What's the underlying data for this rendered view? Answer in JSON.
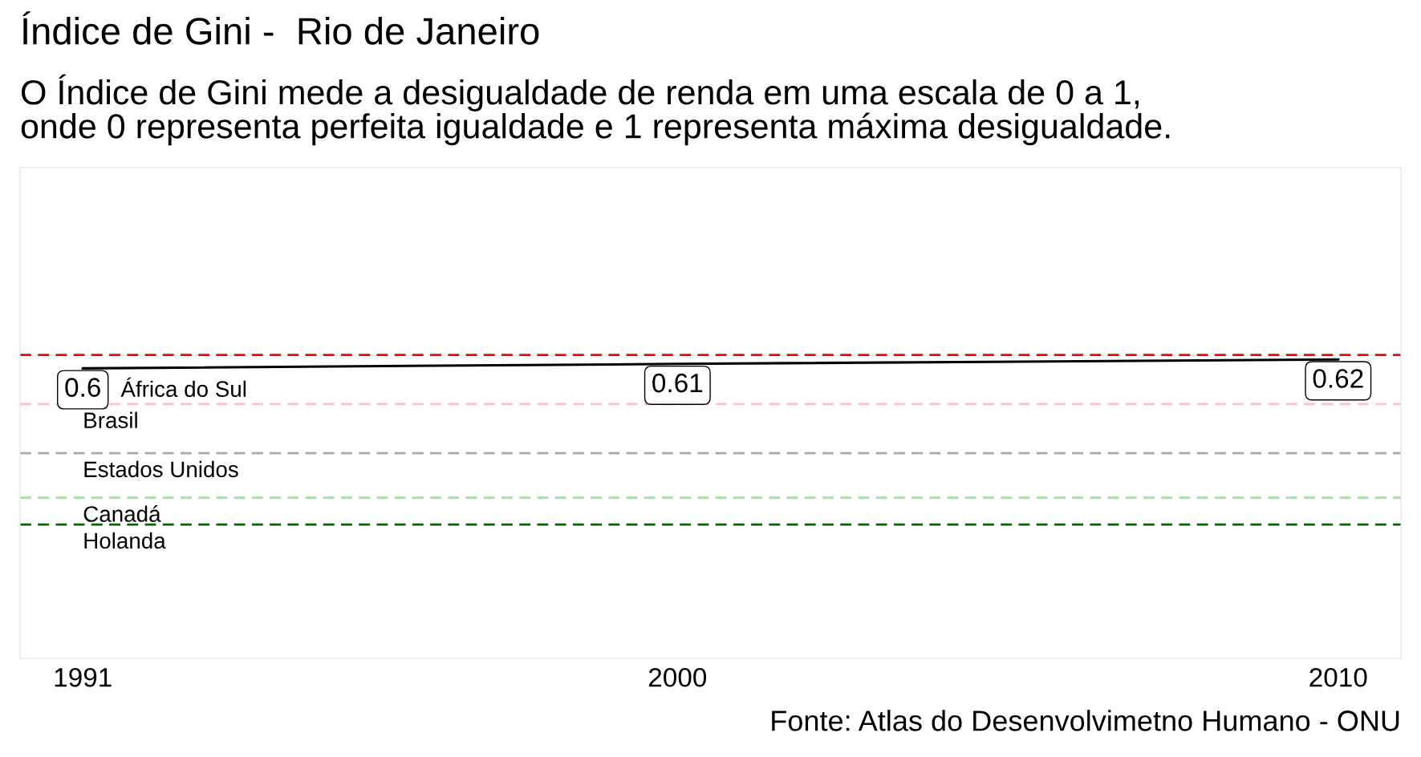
{
  "chart_data": {
    "type": "line",
    "title": "Índice de Gini -  Rio de Janeiro",
    "subtitle": "O Índice de Gini mede a desigualdade de renda em uma escala de 0 a 1,\nonde 0 representa perfeita igualdade e 1 representa máxima desigualdade.",
    "x": [
      1991,
      2000,
      2010
    ],
    "series": [
      {
        "color": "#000000",
        "values": [
          0.6,
          0.61,
          0.62
        ]
      }
    ],
    "data_labels": true,
    "xlim": [
      1990.05,
      2010.95
    ],
    "xticks": [
      1991,
      2000,
      2010
    ],
    "ylim": [
      -0.05,
      1.05
    ],
    "tick_labels": "x",
    "grid": false,
    "legend": false,
    "ref_lines": [
      {
        "axis": "y",
        "value": 0.63,
        "label": "África do Sul",
        "color": "#ff0000",
        "line_style": "dashed"
      },
      {
        "axis": "y",
        "value": 0.52,
        "label": "Brasil",
        "color": "#ffc0cb",
        "line_style": "dashed"
      },
      {
        "axis": "y",
        "value": 0.41,
        "label": "Estados Unidos",
        "color": "#a9a9a9",
        "line_style": "dashed"
      },
      {
        "axis": "y",
        "value": 0.31,
        "label": "Canadá",
        "color": "#90ee90",
        "line_style": "dashed"
      },
      {
        "axis": "y",
        "value": 0.25,
        "label": "Holanda",
        "color": "#006400",
        "line_style": "dashed"
      }
    ],
    "annotations": [
      "Fonte: Atlas do Desenvolvimetno Humano - ONU"
    ]
  }
}
